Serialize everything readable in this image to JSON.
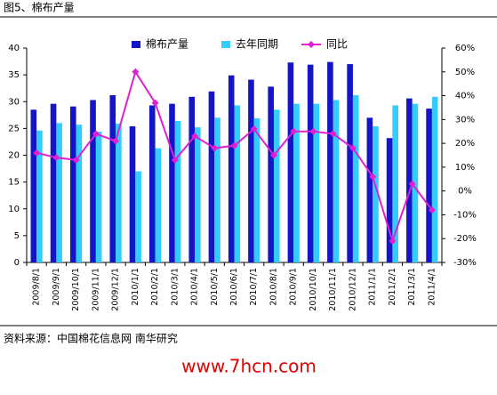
{
  "chart_data": {
    "type": "bar-line",
    "title": "图5、棉布产量",
    "categories": [
      "2009/8/1",
      "2009/9/1",
      "2009/10/1",
      "2009/11/1",
      "2009/12/1",
      "2010/1/1",
      "2010/2/1",
      "2010/3/1",
      "2010/4/1",
      "2010/5/1",
      "2010/6/1",
      "2010/7/1",
      "2010/8/1",
      "2010/9/1",
      "2010/10/1",
      "2010/11/1",
      "2010/12/1",
      "2011/1/1",
      "2011/2/1",
      "2011/3/1",
      "2011/4/1"
    ],
    "series": [
      {
        "name": "棉布产量",
        "type": "bar",
        "color": "#1414c8",
        "values": [
          28.5,
          29.6,
          29.1,
          30.3,
          31.2,
          25.4,
          29.3,
          29.6,
          30.9,
          31.9,
          34.9,
          34.1,
          32.8,
          37.3,
          36.9,
          37.4,
          37.0,
          27.0,
          23.2,
          30.6,
          28.7
        ]
      },
      {
        "name": "去年同期",
        "type": "bar",
        "color": "#33ccff",
        "values": [
          24.6,
          26.0,
          25.7,
          24.4,
          25.9,
          17.0,
          21.3,
          26.4,
          25.2,
          27.0,
          29.3,
          26.9,
          28.5,
          29.6,
          29.6,
          30.3,
          31.2,
          25.4,
          29.3,
          29.6,
          30.9
        ]
      },
      {
        "name": "同比",
        "type": "line",
        "axis": "y2",
        "color": "#e020d0",
        "values": [
          16,
          14,
          13,
          24,
          21,
          50,
          37,
          13,
          23,
          18,
          19,
          26,
          15,
          25,
          25,
          24,
          18,
          6,
          -21,
          3,
          -8
        ]
      }
    ],
    "ylim": [
      0,
      40
    ],
    "yticks": [
      0,
      5,
      10,
      15,
      20,
      25,
      30,
      35,
      40
    ],
    "y2lim": [
      -30,
      60
    ],
    "y2ticks": [
      {
        "value": -30,
        "label": "-30%"
      },
      {
        "value": -20,
        "label": "-20%"
      },
      {
        "value": -10,
        "label": "-10%"
      },
      {
        "value": 0,
        "label": "0%"
      },
      {
        "value": 10,
        "label": "10%"
      },
      {
        "value": 20,
        "label": "20%"
      },
      {
        "value": 30,
        "label": "30%"
      },
      {
        "value": 40,
        "label": "40%"
      },
      {
        "value": 50,
        "label": "50%"
      },
      {
        "value": 60,
        "label": "60%"
      }
    ],
    "grid": false,
    "source": "资料来源：中国棉花信息网 南华研究",
    "website": "www.7hcn.com"
  }
}
